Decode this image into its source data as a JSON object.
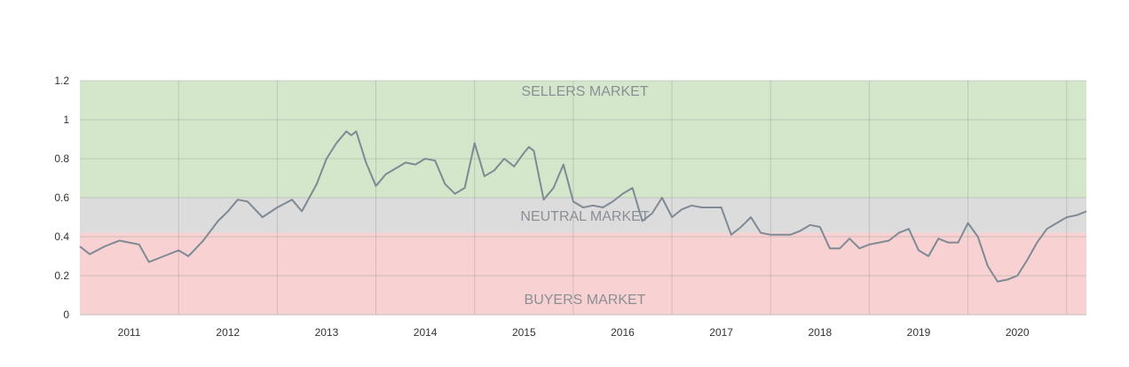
{
  "chart_data": {
    "type": "area",
    "title": "",
    "xlabel": "",
    "ylabel": "",
    "xlim": [
      2010.5,
      2020.7
    ],
    "ylim": [
      0,
      1.2
    ],
    "grid": true,
    "x_ticks": [
      2011,
      2012,
      2013,
      2014,
      2015,
      2016,
      2017,
      2018,
      2019,
      2020
    ],
    "y_ticks": [
      0,
      0.2,
      0.4,
      0.6,
      0.8,
      1,
      1.2
    ],
    "zones": [
      {
        "label": "SELLERS MARKET",
        "from": 0.6,
        "to": 1.2,
        "color": "#d4e7cb"
      },
      {
        "label": "NEUTRAL MARKET",
        "from": 0.42,
        "to": 0.6,
        "color": "#dcdcdc"
      },
      {
        "label": "BUYERS MARKET",
        "from": 0,
        "to": 0.42,
        "color": "#f8d2d2"
      }
    ],
    "series": [
      {
        "line_color": "#7f8a94",
        "x": [
          2010.5,
          2010.6,
          2010.75,
          2010.9,
          2011.0,
          2011.1,
          2011.2,
          2011.35,
          2011.5,
          2011.6,
          2011.75,
          2011.9,
          2012.0,
          2012.1,
          2012.2,
          2012.35,
          2012.5,
          2012.65,
          2012.75,
          2012.9,
          2013.0,
          2013.1,
          2013.2,
          2013.25,
          2013.3,
          2013.4,
          2013.5,
          2013.6,
          2013.7,
          2013.8,
          2013.9,
          2014.0,
          2014.1,
          2014.2,
          2014.3,
          2014.4,
          2014.5,
          2014.6,
          2014.7,
          2014.8,
          2014.9,
          2015.0,
          2015.05,
          2015.1,
          2015.2,
          2015.3,
          2015.4,
          2015.5,
          2015.6,
          2015.7,
          2015.8,
          2015.9,
          2016.0,
          2016.1,
          2016.2,
          2016.3,
          2016.4,
          2016.5,
          2016.6,
          2016.7,
          2016.8,
          2016.9,
          2017.0,
          2017.1,
          2017.2,
          2017.3,
          2017.4,
          2017.5,
          2017.6,
          2017.7,
          2017.8,
          2017.9,
          2018.0,
          2018.1,
          2018.2,
          2018.3,
          2018.4,
          2018.5,
          2018.6,
          2018.7,
          2018.8,
          2018.9,
          2019.0,
          2019.1,
          2019.2,
          2019.3,
          2019.4,
          2019.5,
          2019.6,
          2019.7,
          2019.8,
          2019.9,
          2020.0,
          2020.1,
          2020.2,
          2020.3,
          2020.4,
          2020.5,
          2020.6,
          2020.7
        ],
        "values": [
          0.35,
          0.31,
          0.35,
          0.38,
          0.37,
          0.36,
          0.27,
          0.3,
          0.33,
          0.3,
          0.38,
          0.48,
          0.53,
          0.59,
          0.58,
          0.5,
          0.55,
          0.59,
          0.53,
          0.67,
          0.8,
          0.88,
          0.94,
          0.92,
          0.94,
          0.78,
          0.66,
          0.72,
          0.75,
          0.78,
          0.77,
          0.8,
          0.79,
          0.67,
          0.62,
          0.65,
          0.88,
          0.71,
          0.74,
          0.8,
          0.76,
          0.83,
          0.86,
          0.84,
          0.59,
          0.65,
          0.77,
          0.58,
          0.55,
          0.56,
          0.55,
          0.58,
          0.62,
          0.65,
          0.48,
          0.52,
          0.6,
          0.5,
          0.54,
          0.56,
          0.55,
          0.55,
          0.55,
          0.41,
          0.45,
          0.5,
          0.42,
          0.41,
          0.41,
          0.41,
          0.43,
          0.46,
          0.45,
          0.34,
          0.34,
          0.39,
          0.34,
          0.36,
          0.37,
          0.38,
          0.42,
          0.44,
          0.33,
          0.3,
          0.39,
          0.37,
          0.37,
          0.47,
          0.4,
          0.25,
          0.17,
          0.18,
          0.2,
          0.28,
          0.37,
          0.44,
          0.47,
          0.5,
          0.51,
          0.53
        ]
      }
    ]
  }
}
